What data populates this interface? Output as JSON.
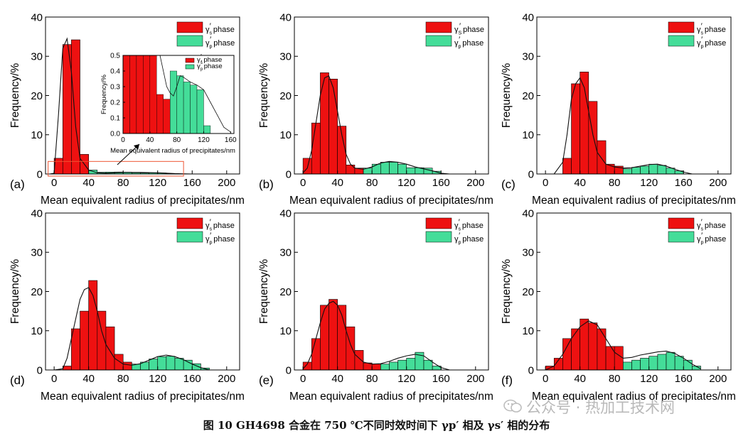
{
  "caption": "图 10    GH4698 合金在 750 ℃不同时效时间下 γp′ 相及 γs′ 相的分布",
  "watermark": "公众号 · 热加工技术网",
  "chart_data": [
    {
      "type": "bar",
      "panel_label": "(a)",
      "xlabel": "Mean equivalent radius of precipitates/nm",
      "ylabel": "Frequency/%",
      "xlim": [
        -10,
        215
      ],
      "ylim": [
        0,
        40
      ],
      "xticks": [
        0,
        40,
        80,
        120,
        160,
        200
      ],
      "yticks": [
        0,
        10,
        20,
        30,
        40
      ],
      "bin_width": 10,
      "legend": {
        "position": "top-right",
        "entries": [
          "γs′ phase",
          "γp′ phase"
        ]
      },
      "series": [
        {
          "name": "γs′ phase",
          "color": "#ee1111",
          "x": [
            5,
            15,
            25,
            35
          ],
          "values": [
            4,
            33,
            34.2,
            5
          ]
        },
        {
          "name": "γp′ phase",
          "color": "#44dd99",
          "x": [
            45,
            55,
            65,
            75,
            85,
            95,
            105,
            115,
            125,
            135
          ],
          "values": [
            1,
            0.45,
            0.48,
            0.5,
            0.45,
            0.3,
            0.25,
            0.3,
            0.25,
            0.1
          ]
        }
      ],
      "fit_line": {
        "x": [
          -5,
          0,
          5,
          10,
          15,
          20,
          25,
          30,
          40,
          50,
          60,
          80,
          100,
          120,
          140,
          160
        ],
        "y": [
          0,
          0.2,
          15,
          32,
          34.5,
          26,
          12,
          4,
          1,
          0.3,
          0.2,
          0.4,
          0.4,
          0.3,
          0.1,
          0
        ]
      },
      "inset": {
        "xlabel": "Mean equivalent radius of precipitates/nm",
        "ylabel": "Frequency/%",
        "xlim": [
          0,
          165
        ],
        "ylim": [
          0,
          0.5
        ],
        "xticks": [
          0,
          40,
          80,
          120,
          160
        ],
        "yticks": [
          0.0,
          0.1,
          0.2,
          0.3,
          0.4,
          0.5
        ],
        "tick_labels_y": [
          "0.0",
          "0.1",
          "0.2",
          "0.3",
          "0.4",
          "0.5"
        ],
        "bin_width": 10,
        "legend": {
          "position": "top-right",
          "entries": [
            "γs′ phase",
            "γp′ phase"
          ]
        },
        "series": [
          {
            "name": "γs′ phase",
            "color": "#ee1111",
            "x": [
              5,
              15,
              25,
              35,
              45,
              55,
              65
            ],
            "values": [
              0.5,
              0.5,
              0.5,
              0.5,
              0.5,
              0.25,
              0.22
            ]
          },
          {
            "name": "γp′ phase",
            "color": "#44dd99",
            "x": [
              75,
              85,
              95,
              105,
              115,
              125
            ],
            "values": [
              0.4,
              0.37,
              0.33,
              0.31,
              0.28,
              0.05
            ]
          }
        ],
        "fit_line": {
          "x": [
            55,
            60,
            65,
            70,
            75,
            80,
            85,
            90,
            100,
            110,
            120,
            130,
            140,
            150,
            160
          ],
          "y": [
            0.5,
            0.4,
            0.3,
            0.26,
            0.24,
            0.3,
            0.37,
            0.36,
            0.33,
            0.31,
            0.28,
            0.2,
            0.12,
            0.04,
            0.01
          ]
        }
      }
    },
    {
      "type": "bar",
      "panel_label": "(b)",
      "xlabel": "Mean equivalent radius of precipitates/nm",
      "ylabel": "Frequency/%",
      "xlim": [
        -10,
        215
      ],
      "ylim": [
        0,
        40
      ],
      "xticks": [
        0,
        40,
        80,
        120,
        160,
        200
      ],
      "yticks": [
        0,
        10,
        20,
        30,
        40
      ],
      "bin_width": 10,
      "legend": {
        "position": "top-right",
        "entries": [
          "γS′ phase",
          "γp′ phase"
        ]
      },
      "series": [
        {
          "name": "γS′ phase",
          "color": "#ee1111",
          "x": [
            5,
            15,
            25,
            35,
            45,
            55,
            65
          ],
          "values": [
            4,
            13,
            25.8,
            24.2,
            12.2,
            2.3,
            1.5
          ]
        },
        {
          "name": "γp′ phase",
          "color": "#44dd99",
          "x": [
            75,
            85,
            95,
            105,
            115,
            125,
            135,
            145,
            155
          ],
          "values": [
            1.5,
            2.5,
            3,
            3,
            2.5,
            1.6,
            1.6,
            1.5,
            0.7
          ]
        }
      ],
      "fit_line": {
        "x": [
          0,
          5,
          10,
          15,
          20,
          25,
          30,
          35,
          40,
          45,
          50,
          55,
          60,
          70,
          80,
          90,
          100,
          110,
          120,
          130,
          140,
          150,
          160,
          170
        ],
        "y": [
          0.3,
          1.5,
          6,
          13,
          20,
          24.5,
          25,
          22,
          16,
          10,
          5,
          2.5,
          1.5,
          1.2,
          1.8,
          2.8,
          3.2,
          3,
          2.5,
          1.8,
          1.3,
          0.8,
          0.2,
          0
        ]
      }
    },
    {
      "type": "bar",
      "panel_label": "(c)",
      "xlabel": "Mean equivalent radius of precipitates/nm",
      "ylabel": "Frequency/%",
      "xlim": [
        -10,
        215
      ],
      "ylim": [
        0,
        40
      ],
      "xticks": [
        0,
        40,
        80,
        120,
        160,
        200
      ],
      "yticks": [
        0,
        10,
        20,
        30,
        40
      ],
      "bin_width": 10,
      "legend": {
        "position": "top-right",
        "entries": [
          "γs′ phase",
          "γp′ phase"
        ]
      },
      "series": [
        {
          "name": "γs′ phase",
          "color": "#ee1111",
          "x": [
            25,
            35,
            45,
            55,
            65,
            75,
            85
          ],
          "values": [
            4,
            23,
            26,
            18.5,
            8.5,
            2.5,
            2
          ]
        },
        {
          "name": "γp′ phase",
          "color": "#44dd99",
          "x": [
            95,
            105,
            115,
            125,
            135,
            145,
            155
          ],
          "values": [
            1.3,
            1.7,
            2,
            2.5,
            2.2,
            1.5,
            0.8
          ]
        }
      ],
      "fit_line": {
        "x": [
          10,
          20,
          25,
          30,
          35,
          40,
          45,
          50,
          55,
          60,
          70,
          80,
          90,
          100,
          110,
          120,
          130,
          140,
          150,
          160,
          170
        ],
        "y": [
          0,
          3,
          10,
          19,
          23,
          24.5,
          22,
          16,
          10,
          5.5,
          2.5,
          1.8,
          1.5,
          1.6,
          2,
          2.4,
          2.5,
          2,
          1.2,
          0.5,
          0
        ]
      }
    },
    {
      "type": "bar",
      "panel_label": "(d)",
      "xlabel": "Mean equivalent radius of precipitates/nm",
      "ylabel": "Frequency/%",
      "xlim": [
        -10,
        215
      ],
      "ylim": [
        0,
        40
      ],
      "xticks": [
        0,
        40,
        80,
        120,
        160,
        200
      ],
      "yticks": [
        0,
        10,
        20,
        30,
        40
      ],
      "bin_width": 10,
      "legend": {
        "position": "top-right",
        "entries": [
          "γs′ phase",
          "γp′ phase"
        ]
      },
      "series": [
        {
          "name": "γs′ phase",
          "color": "#ee1111",
          "x": [
            15,
            25,
            35,
            45,
            55,
            65,
            75,
            85
          ],
          "values": [
            1,
            10.5,
            15,
            22.8,
            15,
            11,
            4,
            2
          ]
        },
        {
          "name": "γp′ phase",
          "color": "#44dd99",
          "x": [
            95,
            105,
            115,
            125,
            135,
            145,
            155,
            165,
            175
          ],
          "values": [
            1.5,
            2,
            2.8,
            3.4,
            3.5,
            3,
            2.5,
            1.6,
            0.5
          ]
        }
      ],
      "fit_line": {
        "x": [
          0,
          10,
          15,
          20,
          25,
          30,
          35,
          40,
          45,
          50,
          55,
          60,
          70,
          80,
          90,
          100,
          110,
          120,
          130,
          140,
          150,
          160,
          170,
          180
        ],
        "y": [
          0,
          0.3,
          3,
          8,
          13,
          18,
          20.5,
          21,
          19,
          15,
          10,
          6.5,
          3,
          1.5,
          1.2,
          1.6,
          2.5,
          3.4,
          3.8,
          3.4,
          2.6,
          1.5,
          0.6,
          0
        ]
      }
    },
    {
      "type": "bar",
      "panel_label": "(e)",
      "xlabel": "Mean equivalent radius of precipitates/nm",
      "ylabel": "Frequency/%",
      "xlim": [
        -10,
        215
      ],
      "ylim": [
        0,
        40
      ],
      "xticks": [
        0,
        40,
        80,
        120,
        160,
        200
      ],
      "yticks": [
        0,
        10,
        20,
        30,
        40
      ],
      "bin_width": 10,
      "legend": {
        "position": "top-right",
        "entries": [
          "γs′ phase",
          "γp′ phase"
        ]
      },
      "series": [
        {
          "name": "γs′ phase",
          "color": "#ee1111",
          "x": [
            5,
            15,
            25,
            35,
            45,
            55,
            65,
            75,
            85
          ],
          "values": [
            2,
            8,
            16.5,
            18,
            16.5,
            11,
            5,
            1.8,
            1.5
          ]
        },
        {
          "name": "γp′ phase",
          "color": "#44dd99",
          "x": [
            95,
            105,
            115,
            125,
            135,
            145,
            155
          ],
          "values": [
            1.5,
            2,
            2.5,
            3,
            4.5,
            2.5,
            1
          ]
        }
      ],
      "fit_line": {
        "x": [
          0,
          5,
          10,
          15,
          20,
          25,
          30,
          35,
          40,
          45,
          50,
          55,
          60,
          70,
          80,
          90,
          100,
          110,
          120,
          130,
          140,
          150,
          160,
          170
        ],
        "y": [
          0.3,
          1.5,
          4,
          8,
          12,
          15.5,
          17,
          17.5,
          16.5,
          14,
          10,
          6.5,
          4,
          2,
          1.5,
          1.6,
          2.2,
          3,
          3.6,
          4,
          3.6,
          2,
          0.6,
          0
        ]
      }
    },
    {
      "type": "bar",
      "panel_label": "(f)",
      "xlabel": "Mean equivalent radius of precipitates/nm",
      "ylabel": "Frequency/%",
      "xlim": [
        -10,
        215
      ],
      "ylim": [
        0,
        40
      ],
      "xticks": [
        0,
        40,
        80,
        120,
        160,
        200
      ],
      "yticks": [
        0,
        10,
        20,
        30,
        40
      ],
      "bin_width": 10,
      "legend": {
        "position": "top-right",
        "entries": [
          "γs′ phase",
          "γp′ phase"
        ]
      },
      "series": [
        {
          "name": "γs′ phase",
          "color": "#ee1111",
          "x": [
            5,
            15,
            25,
            35,
            45,
            55,
            65,
            75,
            85
          ],
          "values": [
            1,
            3,
            8,
            10.5,
            13,
            12,
            10.5,
            6,
            6
          ]
        },
        {
          "name": "γp′ phase",
          "color": "#44dd99",
          "x": [
            95,
            105,
            115,
            125,
            135,
            145,
            155,
            165,
            175
          ],
          "values": [
            2,
            2.5,
            3,
            3.5,
            4,
            4.5,
            3.5,
            2.5,
            1
          ]
        }
      ],
      "fit_line": {
        "x": [
          0,
          10,
          20,
          30,
          40,
          50,
          60,
          70,
          80,
          90,
          100,
          110,
          120,
          130,
          140,
          150,
          160,
          170,
          180
        ],
        "y": [
          0,
          1,
          4,
          8,
          11,
          12.5,
          11.5,
          8,
          4.5,
          3,
          3.2,
          3.8,
          4.2,
          4.6,
          4.8,
          4.2,
          3,
          1.5,
          0.3
        ]
      }
    }
  ]
}
